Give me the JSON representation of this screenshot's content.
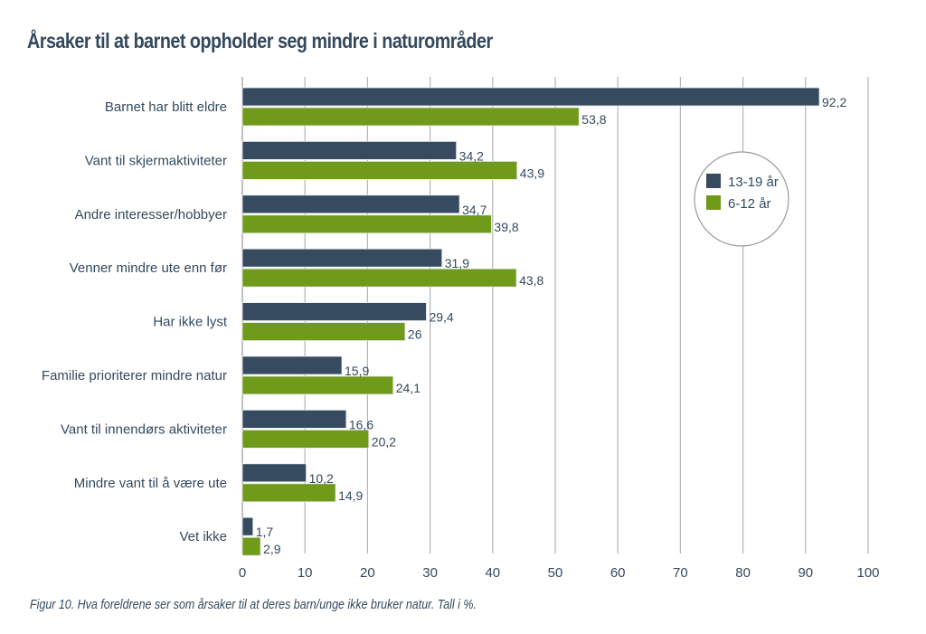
{
  "chart_data": {
    "type": "bar",
    "orientation": "horizontal",
    "title": "Årsaker til at barnet oppholder seg mindre i naturområder",
    "caption": "Figur 10.  Hva foreldrene ser som årsaker til at deres barn/unge ikke bruker natur. Tall i %.",
    "xlabel": "",
    "ylabel": "",
    "xlim": [
      0,
      100
    ],
    "xticks": [
      0,
      10,
      20,
      30,
      40,
      50,
      60,
      70,
      80,
      90,
      100
    ],
    "grid": true,
    "legend_position": "right",
    "categories": [
      "Barnet har blitt eldre",
      "Vant til skjermaktiviteter",
      "Andre interesser/hobbyer",
      "Venner mindre ute enn før",
      "Har ikke lyst",
      "Familie prioriterer mindre natur",
      "Vant til innendørs aktiviteter",
      "Mindre vant til å være ute",
      "Vet ikke"
    ],
    "series": [
      {
        "name": "13-19 år",
        "color": "#364b60",
        "values": [
          92.2,
          34.2,
          34.7,
          31.9,
          29.4,
          15.9,
          16.6,
          10.2,
          1.7
        ],
        "labels": [
          "92,2",
          "34,2",
          "34,7",
          "31,9",
          "29,4",
          "15,9",
          "16,6",
          "10,2",
          "1,7"
        ]
      },
      {
        "name": "6-12 år",
        "color": "#6f9a1a",
        "values": [
          53.8,
          43.9,
          39.8,
          43.8,
          26,
          24.1,
          20.2,
          14.9,
          2.9
        ],
        "labels": [
          "53,8",
          "43,9",
          "39,8",
          "43,8",
          "26",
          "24,1",
          "20,2",
          "14,9",
          "2,9"
        ]
      }
    ]
  }
}
